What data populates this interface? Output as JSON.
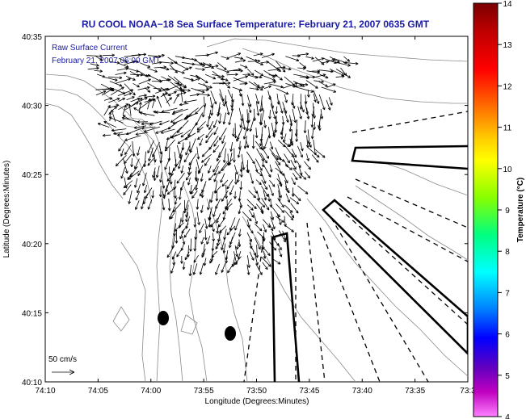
{
  "chart_data": {
    "type": "vector_field_map",
    "title": "RU COOL  NOAA−18  Sea Surface Temperature:  February 21, 2007 0635 GMT",
    "annotation_lines": [
      "Raw Surface Current",
      "February 21, 2007 06:00 GMT"
    ],
    "xlabel": "Longitude (Degrees:Minutes)",
    "ylabel": "Latitude (Degrees:Minutes)",
    "x_ticks": [
      "74:10",
      "74:05",
      "74:00",
      "73:55",
      "73:50",
      "73:45",
      "73:40",
      "73:35",
      "73:3"
    ],
    "y_ticks": [
      "40:35",
      "40:30",
      "40:25",
      "40:20",
      "40:15",
      "40:10"
    ],
    "xlim_minutes_west": [
      70,
      30
    ],
    "ylim_minutes": [
      10,
      35
    ],
    "scale_arrow_label": "50 cm/s",
    "colorbar": {
      "label": "Temperature (°C)",
      "ticks": [
        "14",
        "13",
        "12",
        "11",
        "10",
        "9",
        "8",
        "7",
        "6",
        "5",
        "4"
      ],
      "range": [
        4,
        14
      ]
    },
    "buoys": [
      {
        "lon_w_min": 58.9,
        "lat_min": 14.7
      },
      {
        "lon_w_min": 52.2,
        "lat_min": 13.5
      }
    ]
  }
}
